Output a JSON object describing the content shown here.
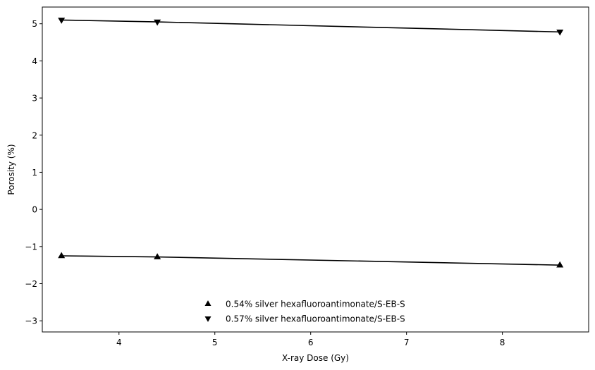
{
  "chart_data": {
    "type": "line",
    "title": "",
    "xlabel": "X-ray Dose (Gy)",
    "ylabel": "Porosity (%)",
    "xlim": [
      3.2,
      8.9
    ],
    "ylim": [
      -3.3,
      5.45
    ],
    "xticks": [
      4,
      5,
      6,
      7,
      8
    ],
    "yticks": [
      -3,
      -2,
      -1,
      0,
      1,
      2,
      3,
      4,
      5
    ],
    "xtick_labels": [
      "4",
      "5",
      "6",
      "7",
      "8"
    ],
    "ytick_labels": [
      "−3",
      "−2",
      "−1",
      "0",
      "1",
      "2",
      "3",
      "4",
      "5"
    ],
    "grid": false,
    "legend_position": "lower center",
    "series": [
      {
        "name": "0.54% silver hexafluoroantimonate/S-EB-S",
        "marker": "triangle-up",
        "color": "#000000",
        "x": [
          3.4,
          4.4,
          8.6
        ],
        "y": [
          -1.25,
          -1.28,
          -1.5
        ]
      },
      {
        "name": "0.57% silver hexafluoroantimonate/S-EB-S",
        "marker": "triangle-down",
        "color": "#000000",
        "x": [
          3.4,
          4.4,
          8.6
        ],
        "y": [
          5.1,
          5.05,
          4.78
        ]
      }
    ]
  }
}
